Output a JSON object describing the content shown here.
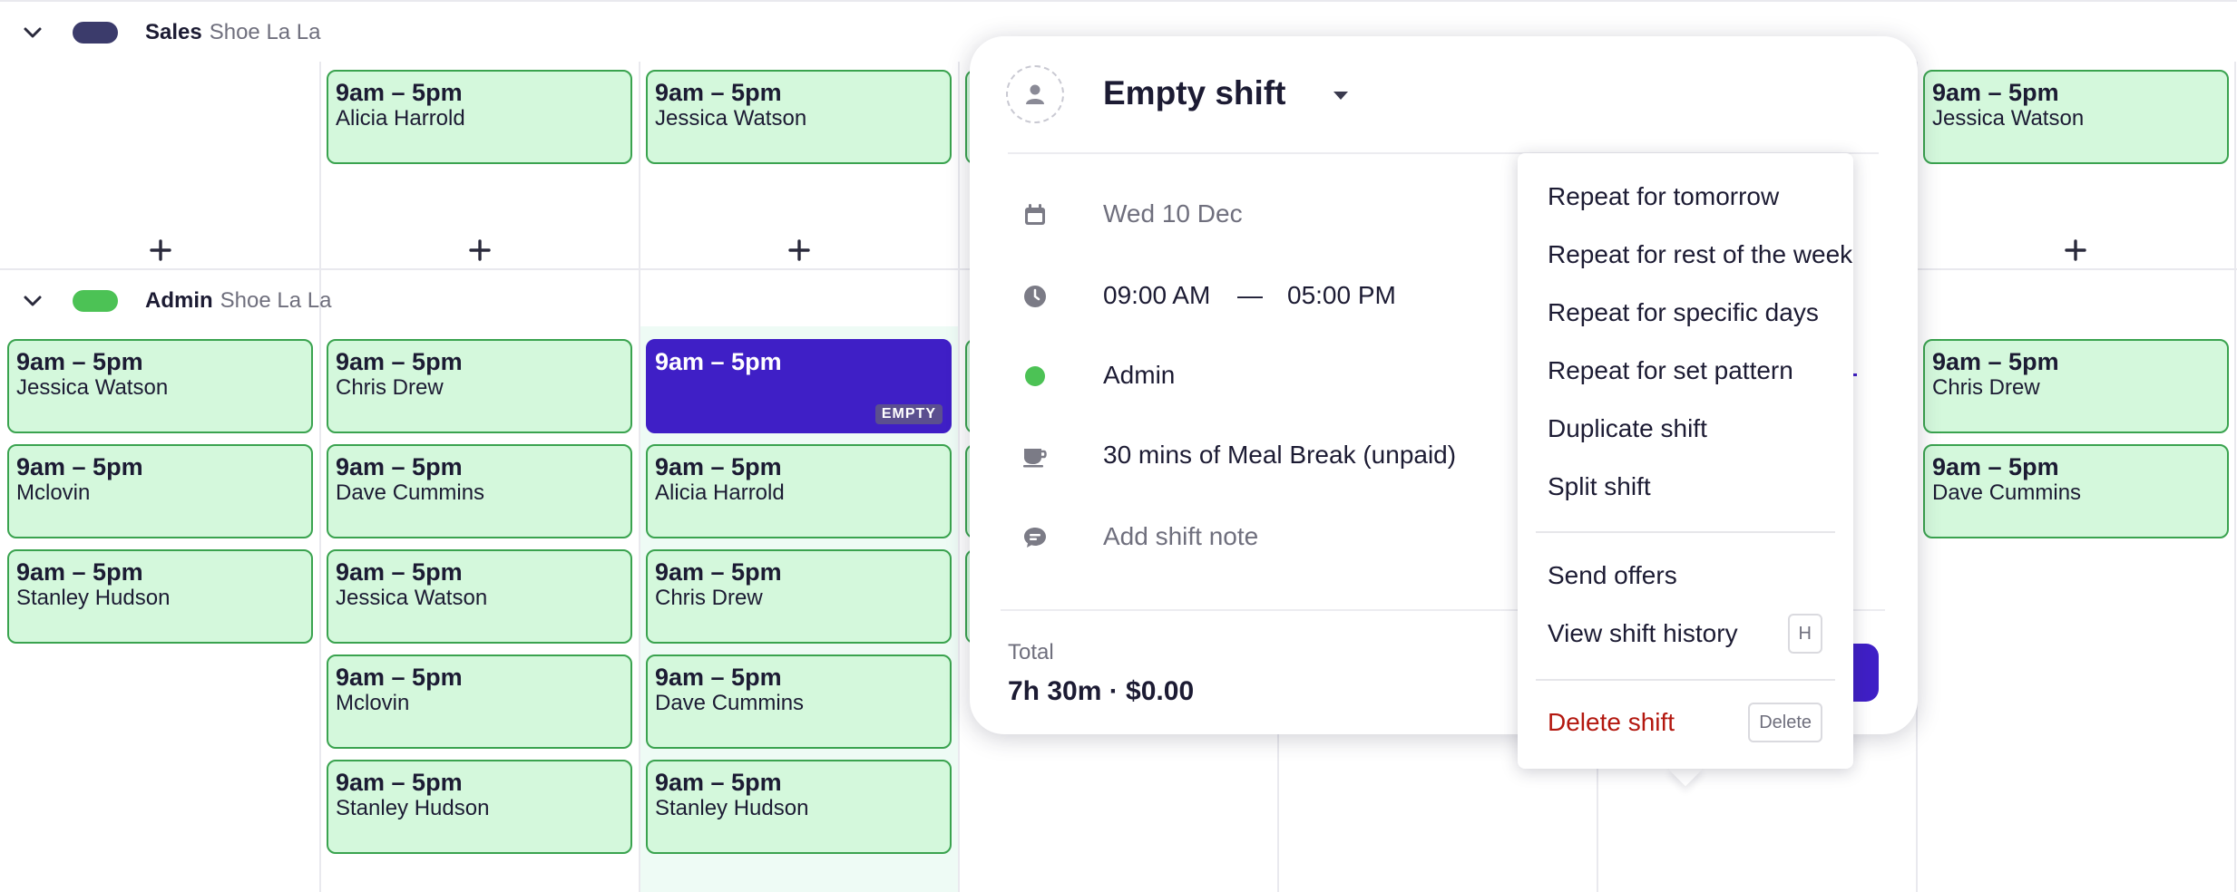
{
  "colors": {
    "sales_pill": "#3b3b6b",
    "admin_pill": "#4cc255",
    "shift_fill": "#d4f8dc",
    "shift_border": "#3aa34f",
    "selected_shift": "#3f1fc6",
    "danger": "#b3170f"
  },
  "groups": [
    {
      "name": "Sales",
      "location": "Shoe La La",
      "expanded": true
    },
    {
      "name": "Admin",
      "location": "Shoe La La",
      "expanded": true
    }
  ],
  "sales_shifts": [
    {
      "time": "9am – 5pm",
      "name": "Alicia Harrold"
    },
    {
      "time": "9am – 5pm",
      "name": "Jessica Watson"
    },
    {
      "time": "9am – 5pm",
      "name": "Jessica Watson"
    }
  ],
  "admin_shifts": [
    {
      "time": "9am – 5pm",
      "name": "Jessica Watson"
    },
    {
      "time": "9am – 5pm",
      "name": "Mclovin"
    },
    {
      "time": "9am – 5pm",
      "name": "Stanley Hudson"
    },
    {
      "time": "9am – 5pm",
      "name": "Chris Drew"
    },
    {
      "time": "9am – 5pm",
      "name": "Dave Cummins"
    },
    {
      "time": "9am – 5pm",
      "name": "Jessica Watson"
    },
    {
      "time": "9am – 5pm",
      "name": "Mclovin"
    },
    {
      "time": "9am – 5pm",
      "name": "Stanley Hudson"
    },
    {
      "time": "9am – 5pm",
      "name": "",
      "badge": "EMPTY"
    },
    {
      "time": "9am – 5pm",
      "name": "Alicia Harrold"
    },
    {
      "time": "9am – 5pm",
      "name": "Chris Drew"
    },
    {
      "time": "9am – 5pm",
      "name": "Dave Cummins"
    },
    {
      "time": "9am – 5pm",
      "name": "Stanley Hudson"
    },
    {
      "time": "9am – 5pm",
      "name": "Chris Drew"
    },
    {
      "time": "9am – 5pm",
      "name": "Dave Cummins"
    }
  ],
  "popover": {
    "title": "Empty shift",
    "date": "Wed 10 Dec",
    "start_time": "09:00 AM",
    "separator": "—",
    "end_time": "05:00 PM",
    "area": "Admin",
    "break": "30 mins of Meal Break (unpaid)",
    "note_placeholder": "Add shift note",
    "total_label": "Total",
    "total_value": "7h 30m · $0.00"
  },
  "menu": {
    "items": [
      "Repeat for tomorrow",
      "Repeat for rest of the week",
      "Repeat for specific days",
      "Repeat for set pattern",
      "Duplicate shift",
      "Split shift"
    ],
    "send_offers": "Send offers",
    "view_history": "View shift history",
    "view_history_key": "H",
    "delete": "Delete shift",
    "delete_key": "Delete"
  }
}
